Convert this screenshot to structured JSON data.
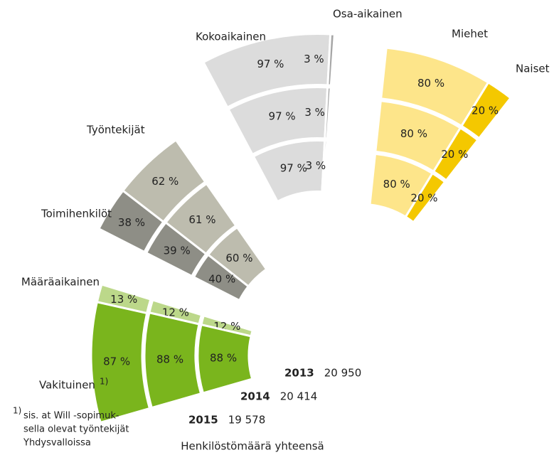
{
  "chart_data": {
    "type": "exploded-rings",
    "categories": [
      "2015",
      "2014",
      "2013"
    ],
    "totals": [
      19578,
      20414,
      20950
    ],
    "total_labels": [
      "19 578",
      "20 414",
      "20 950"
    ],
    "totals_title": "Henkilöstömäärä yhteensä",
    "groups": [
      {
        "series": [
          {
            "name": "Määräaikainen",
            "color": "#bcd88a",
            "values": [
              13,
              12,
              12
            ],
            "value_labels": [
              "13 %",
              "12 %",
              "12 %"
            ]
          },
          {
            "name": "Vakituinen",
            "note": "1)",
            "color": "#7ab51d",
            "values": [
              87,
              88,
              88
            ],
            "value_labels": [
              "87 %",
              "88 %",
              "88 %"
            ]
          }
        ]
      },
      {
        "series": [
          {
            "name": "Työntekijät",
            "color": "#bdbcae",
            "values": [
              62,
              61,
              60
            ],
            "value_labels": [
              "62 %",
              "61 %",
              "60 %"
            ]
          },
          {
            "name": "Toimihenkilöt",
            "color": "#8e8e86",
            "values": [
              38,
              39,
              40
            ],
            "value_labels": [
              "38 %",
              "39 %",
              "40 %"
            ]
          }
        ]
      },
      {
        "series": [
          {
            "name": "Kokoaikainen",
            "color": "#dcdcdc",
            "values": [
              97,
              97,
              97
            ],
            "value_labels": [
              "97 %",
              "97 %",
              "97 %"
            ]
          },
          {
            "name": "Osa-aikainen",
            "color": "#a6a6a6",
            "values": [
              3,
              3,
              3
            ],
            "value_labels": [
              "3 %",
              "3 %",
              "3 %"
            ]
          }
        ]
      },
      {
        "series": [
          {
            "name": "Miehet",
            "color": "#fde58a",
            "values": [
              80,
              80,
              80
            ],
            "value_labels": [
              "80 %",
              "80 %",
              "80 %"
            ]
          },
          {
            "name": "Naiset",
            "color": "#f4c800",
            "values": [
              20,
              20,
              20
            ],
            "value_labels": [
              "20 %",
              "20 %",
              "20 %"
            ]
          }
        ]
      }
    ],
    "footnote": {
      "marker": "1)",
      "lines": [
        "sis. at Will -sopimuk-",
        "sella olevat työntekijät",
        "Yhdysvalloissa"
      ]
    }
  }
}
